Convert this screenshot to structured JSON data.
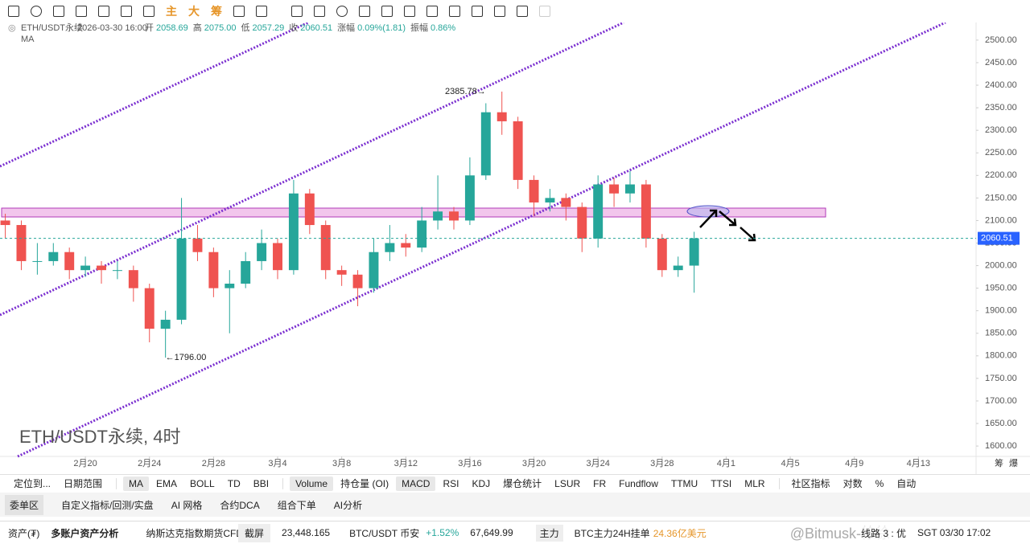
{
  "toolbar": {
    "labels": [
      "主",
      "大",
      "筹"
    ]
  },
  "chart_data": {
    "type": "candlestick",
    "symbol": "ETH/USDT永续",
    "watermark": "ETH/USDT永续, 4时",
    "indicator": "MA",
    "legend": {
      "time": "2026-03-30 16:00",
      "items": [
        {
          "label": "开",
          "value": "2058.69"
        },
        {
          "label": "高",
          "value": "2075.00"
        },
        {
          "label": "低",
          "value": "2057.29"
        },
        {
          "label": "收",
          "value": "2060.51"
        },
        {
          "label": "涨幅",
          "value": "0.09%(1.81)"
        },
        {
          "label": "振幅",
          "value": "0.86%"
        }
      ]
    },
    "colors": {
      "up": "#26a69a",
      "down": "#ef5350"
    },
    "x": [
      -5,
      -4,
      -3,
      -2,
      -1,
      0,
      1,
      2,
      3,
      4,
      5,
      6,
      7,
      8,
      9,
      10,
      11,
      12,
      13,
      14,
      15,
      16,
      17,
      18,
      19,
      20,
      21,
      22,
      23,
      24,
      25,
      26,
      27,
      28,
      29,
      30,
      31,
      32,
      33,
      34,
      35,
      36,
      37,
      38
    ],
    "open": [
      2100,
      2090,
      2010,
      2010,
      2030,
      1990,
      2000,
      1990,
      1990,
      1950,
      1860,
      1880,
      2060,
      2030,
      1950,
      1960,
      2010,
      2050,
      1990,
      2160,
      2090,
      1990,
      1980,
      1950,
      2030,
      2050,
      2040,
      2100,
      2120,
      2100,
      2200,
      2340,
      2320,
      2190,
      2140,
      2150,
      2130,
      2060,
      2180,
      2160,
      2180,
      2060,
      1990,
      2000
    ],
    "high": [
      2115,
      2100,
      2050,
      2050,
      2040,
      2020,
      2010,
      2010,
      2000,
      1960,
      1900,
      2150,
      2090,
      2040,
      1990,
      2030,
      2080,
      2060,
      2190,
      2170,
      2100,
      2000,
      1990,
      2060,
      2090,
      2070,
      2130,
      2200,
      2130,
      2240,
      2360,
      2385.78,
      2330,
      2200,
      2170,
      2160,
      2140,
      2200,
      2195,
      2210,
      2190,
      2070,
      2020,
      2075
    ],
    "low": [
      2060,
      1990,
      1980,
      2000,
      1970,
      1975,
      1960,
      1970,
      1920,
      1830,
      1796,
      1870,
      2010,
      1930,
      1850,
      1950,
      1990,
      1970,
      1980,
      2070,
      1970,
      1955,
      1910,
      1940,
      2010,
      2020,
      2030,
      2080,
      2080,
      2090,
      2190,
      2290,
      2170,
      2110,
      2120,
      2100,
      2030,
      2040,
      2130,
      2140,
      2040,
      1975,
      1975,
      1940
    ],
    "close": [
      2090,
      2010,
      2010,
      2030,
      1990,
      2000,
      1990,
      1990,
      1950,
      1860,
      1880,
      2060,
      2030,
      1950,
      1960,
      2010,
      2050,
      1990,
      2160,
      2090,
      1990,
      1980,
      1950,
      2030,
      2050,
      2040,
      2100,
      2120,
      2100,
      2200,
      2340,
      2320,
      2190,
      2140,
      2150,
      2130,
      2060,
      2180,
      2160,
      2180,
      2060,
      1990,
      2000,
      2060.51
    ],
    "last_price": 2060.51,
    "annotations": [
      {
        "x": 25,
        "value": 2385.78,
        "label": "2385.78→"
      },
      {
        "x": 5,
        "value": 1796,
        "label": "←1796.00"
      }
    ],
    "xlim": [
      -5.33,
      55.6
    ],
    "xticks": [
      {
        "value": 0,
        "label": "2月20"
      },
      {
        "value": 4,
        "label": "2月24"
      },
      {
        "value": 8,
        "label": "2月28"
      },
      {
        "value": 12,
        "label": "3月4"
      },
      {
        "value": 16,
        "label": "3月8"
      },
      {
        "value": 20,
        "label": "3月12"
      },
      {
        "value": 24,
        "label": "3月16"
      },
      {
        "value": 28,
        "label": "3月20"
      },
      {
        "value": 32,
        "label": "3月24"
      },
      {
        "value": 36,
        "label": "3月28"
      },
      {
        "value": 40,
        "label": "4月1"
      },
      {
        "value": 44,
        "label": "4月5"
      },
      {
        "value": 48,
        "label": "4月9"
      },
      {
        "value": 52,
        "label": "4月13"
      }
    ],
    "ylim": [
      1577,
      2539
    ],
    "yticks": [
      {
        "value": 1600,
        "label": "1600.00"
      },
      {
        "value": 1650,
        "label": "1650.00"
      },
      {
        "value": 1700,
        "label": "1700.00"
      },
      {
        "value": 1750,
        "label": "1750.00"
      },
      {
        "value": 1800,
        "label": "1800.00"
      },
      {
        "value": 1850,
        "label": "1850.00"
      },
      {
        "value": 1900,
        "label": "1900.00"
      },
      {
        "value": 1950,
        "label": "1950.00"
      },
      {
        "value": 2000,
        "label": "2000.00"
      },
      {
        "value": 2050,
        "label": "2050.00"
      },
      {
        "value": 2100,
        "label": "2100.00"
      },
      {
        "value": 2150,
        "label": "2150.00"
      },
      {
        "value": 2200,
        "label": "2200.00"
      },
      {
        "value": 2250,
        "label": "2250.00"
      },
      {
        "value": 2300,
        "label": "2300.00"
      },
      {
        "value": 2350,
        "label": "2350.00"
      },
      {
        "value": 2400,
        "label": "2400.00"
      },
      {
        "value": 2450,
        "label": "2450.00"
      },
      {
        "value": 2500,
        "label": "2500.00"
      }
    ],
    "axis_corner": [
      "筹",
      "爆"
    ]
  },
  "indicator_bar": {
    "left": [
      "定位到...",
      "日期范围"
    ],
    "main": [
      "MA",
      "EMA",
      "BOLL",
      "TD",
      "BBI"
    ],
    "active_main": 0,
    "sub": [
      "Volume",
      "持仓量 (OI)",
      "MACD",
      "RSI",
      "KDJ",
      "爆仓统计",
      "LSUR",
      "FR",
      "Fundflow",
      "TTMU",
      "TTSI",
      "MLR"
    ],
    "active_sub": [
      0,
      2
    ],
    "right": [
      "社区指标",
      "对数",
      "%",
      "自动"
    ]
  },
  "panel_tabs": [
    "委单区",
    "自定义指标/回测/实盘",
    "AI 网格",
    "合约DCA",
    "组合下单",
    "AI分析"
  ],
  "footer": {
    "assets": "资产(₮)",
    "multi": "多账户资产分析",
    "nasdaq": "纳斯达克指数期货CFD",
    "screenshot": "截屏",
    "nasdaq_price": "23,448.165",
    "pair": "BTC/USDT 币安",
    "change": "+1.52%",
    "pair_price": "67,649.99",
    "main_force": "主力",
    "order_label": "BTC主力24H挂单",
    "order_value": "24.36亿美元",
    "watermark": "@Bitmusk-徐徐",
    "route": "线路 3 : 优",
    "clock": "SGT 03/30 17:02"
  }
}
